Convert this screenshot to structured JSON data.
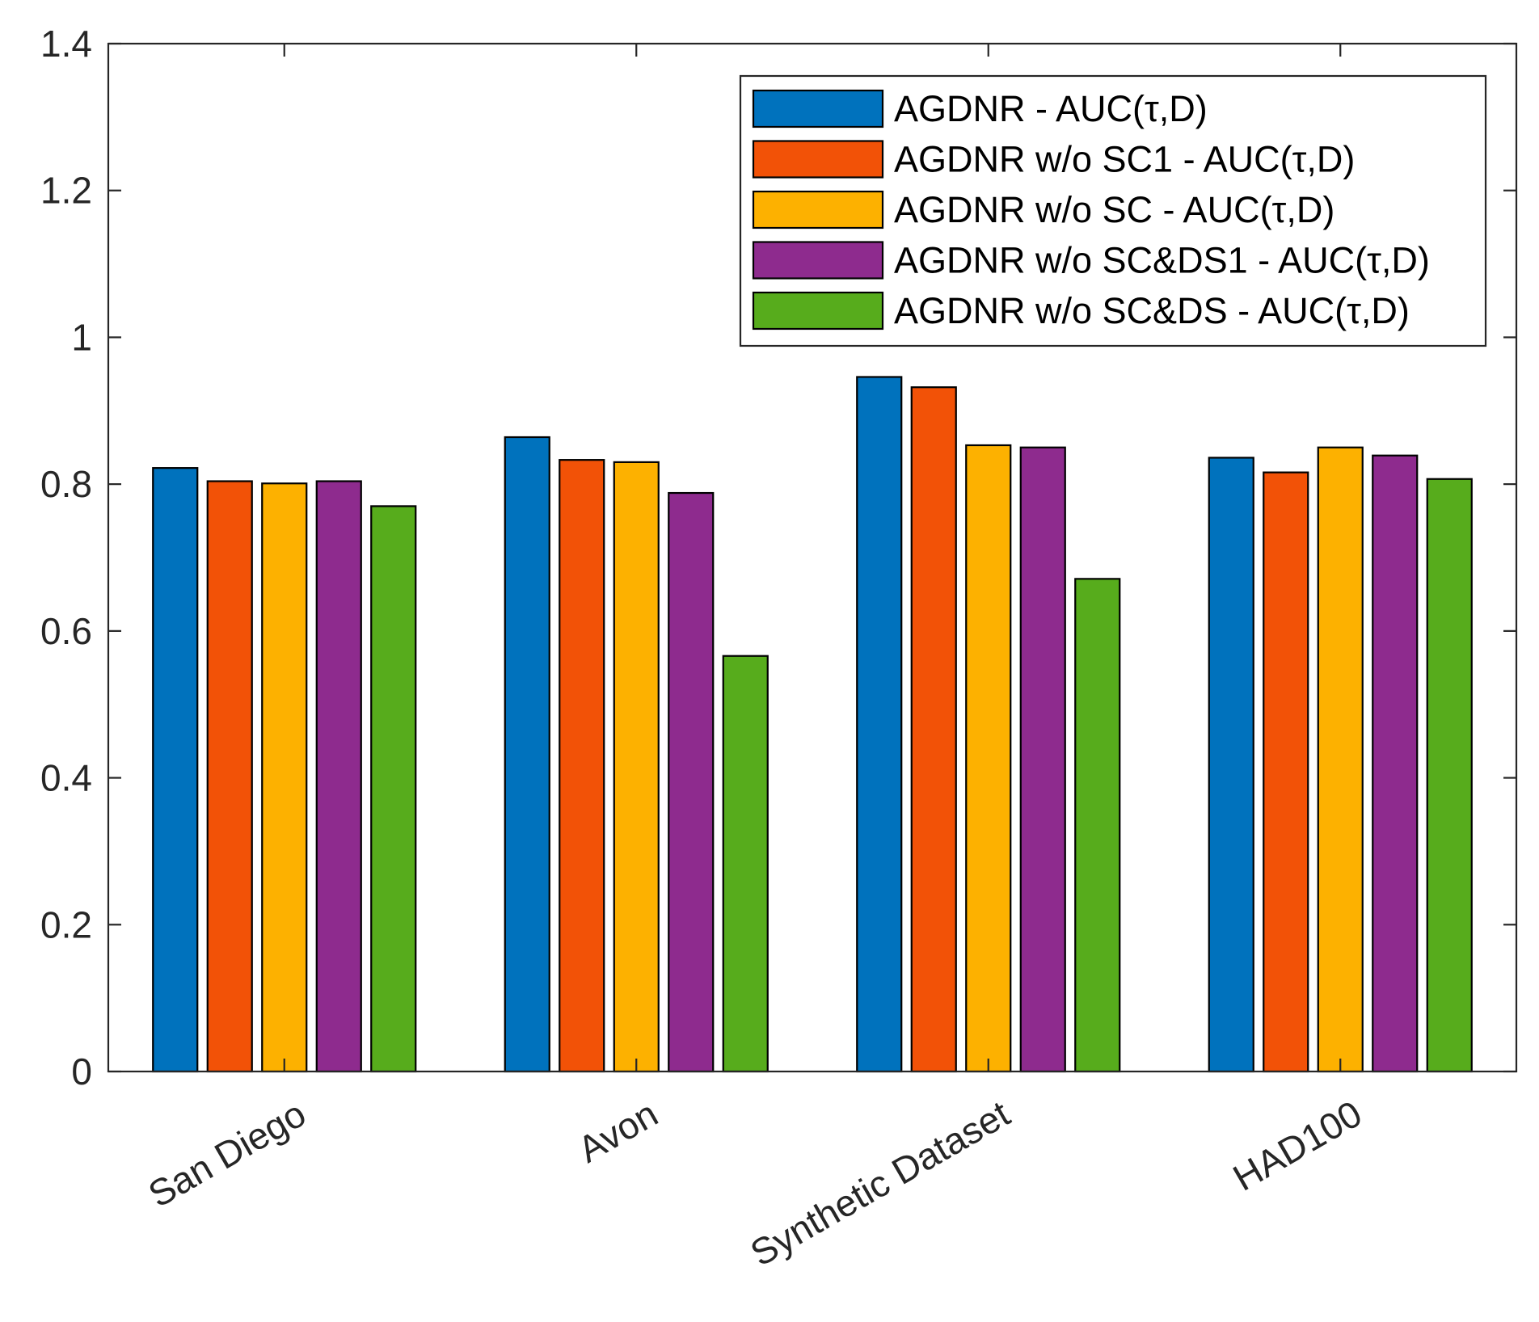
{
  "chart_data": {
    "type": "bar",
    "title": "",
    "xlabel": "",
    "ylabel": "",
    "ylim": [
      0,
      1.4
    ],
    "yticks": [
      "0",
      "0.2",
      "0.4",
      "0.6",
      "0.8",
      "1",
      "1.2",
      "1.4"
    ],
    "grid": false,
    "legend_position": "top-right",
    "categories": [
      "San Diego",
      "Avon",
      "Synthetic Dataset",
      "HAD100"
    ],
    "series": [
      {
        "name": "AGDNR - AUC(τ,D)",
        "color": "#0072BD",
        "values": [
          0.822,
          0.864,
          0.946,
          0.836
        ]
      },
      {
        "name": "AGDNR w/o SC1 - AUC(τ,D)",
        "color": "#F25207",
        "values": [
          0.804,
          0.833,
          0.932,
          0.816
        ]
      },
      {
        "name": "AGDNR w/o SC - AUC(τ,D)",
        "color": "#FDB100",
        "values": [
          0.801,
          0.83,
          0.853,
          0.85
        ]
      },
      {
        "name": "AGDNR w/o SC&DS1 - AUC(τ,D)",
        "color": "#8E2B8E",
        "values": [
          0.804,
          0.788,
          0.85,
          0.839
        ]
      },
      {
        "name": "AGDNR w/o SC&DS - AUC(τ,D)",
        "color": "#57AC1C",
        "values": [
          0.77,
          0.566,
          0.671,
          0.807
        ]
      }
    ]
  }
}
